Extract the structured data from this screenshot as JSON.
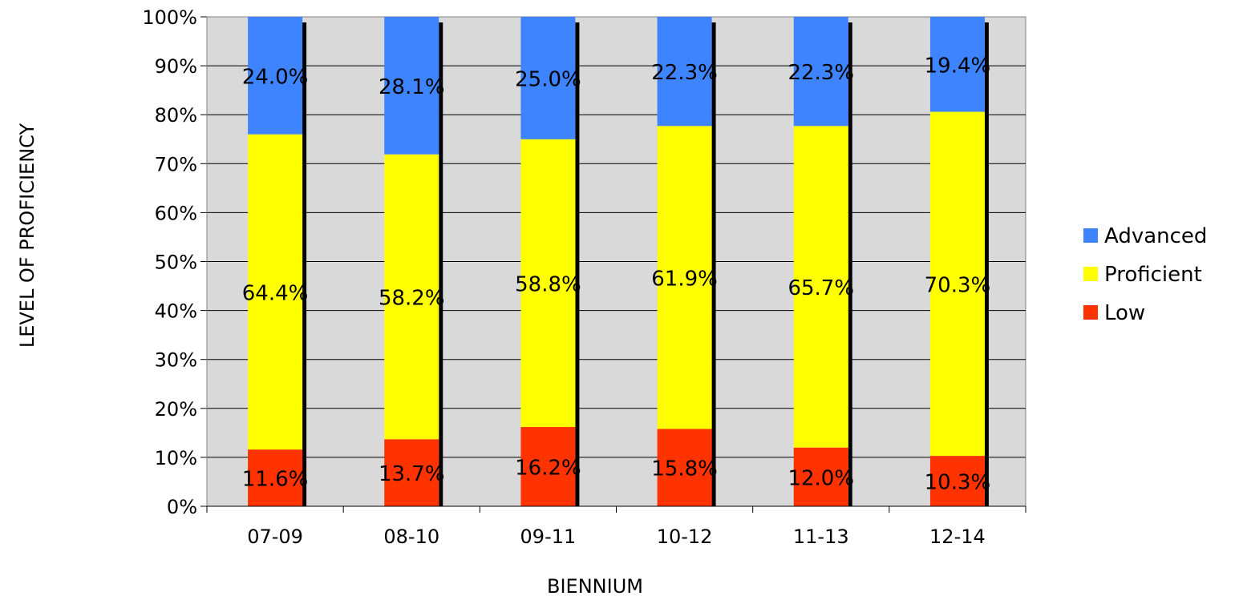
{
  "chart_data": {
    "type": "bar",
    "stacked": true,
    "percent_stacked": true,
    "categories": [
      "07-09",
      "08-10",
      "09-11",
      "10-12",
      "11-13",
      "12-14"
    ],
    "series": [
      {
        "name": "Low",
        "values": [
          11.6,
          13.7,
          16.2,
          15.8,
          12.0,
          10.3
        ],
        "labels": [
          "11.6%",
          "13.7%",
          "16.2%",
          "15.8%",
          "12.0%",
          "10.3%"
        ],
        "color": "#ff3300"
      },
      {
        "name": "Proficient",
        "values": [
          64.4,
          58.2,
          58.8,
          61.9,
          65.7,
          70.3
        ],
        "labels": [
          "64.4%",
          "58.2%",
          "58.8%",
          "61.9%",
          "65.7%",
          "70.3%"
        ],
        "color": "#ffff00"
      },
      {
        "name": "Advanced",
        "values": [
          24.0,
          28.1,
          25.0,
          22.3,
          22.3,
          19.4
        ],
        "labels": [
          "24.0%",
          "28.1%",
          "25.0%",
          "22.3%",
          "22.3%",
          "19.4%"
        ],
        "color": "#3f84ff"
      }
    ],
    "title": "",
    "xlabel": "BIENNIUM",
    "ylabel": "LEVEL OF PROFICIENCY",
    "ylim": [
      0,
      100
    ],
    "yticks": [
      "0%",
      "10%",
      "20%",
      "30%",
      "40%",
      "50%",
      "60%",
      "70%",
      "80%",
      "90%",
      "100%"
    ],
    "grid": true,
    "plot_background": "#d9d9d9",
    "bar_shadow_color": "#000000",
    "legend": {
      "position": "right",
      "items": [
        {
          "label": "Advanced",
          "color": "#3f84ff"
        },
        {
          "label": "Proficient",
          "color": "#ffff00"
        },
        {
          "label": "Low",
          "color": "#ff3300"
        }
      ]
    }
  }
}
